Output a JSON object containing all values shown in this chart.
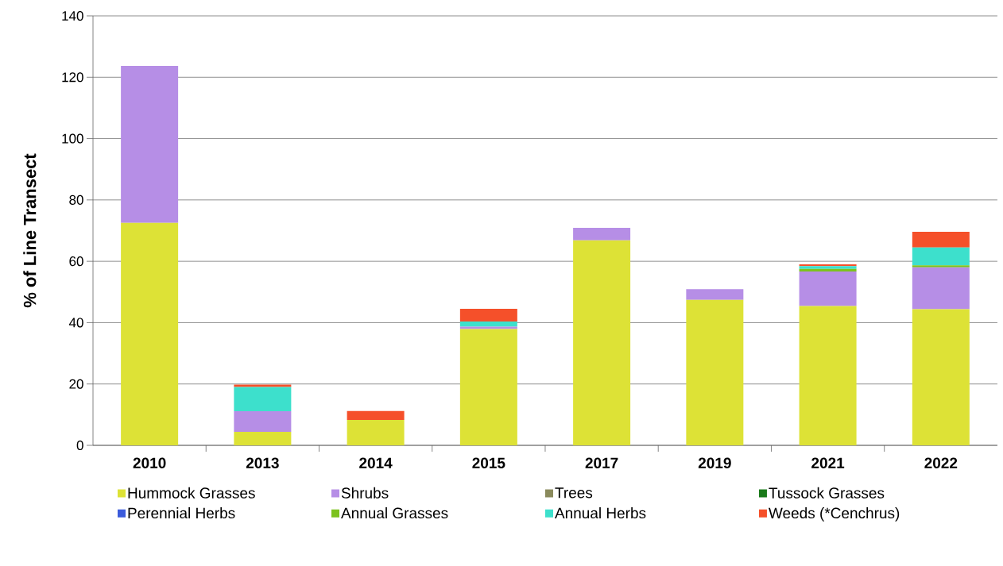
{
  "chart_data": {
    "type": "bar",
    "stacked": true,
    "ylabel": "% of Line Transect",
    "categories": [
      "2010",
      "2013",
      "2014",
      "2015",
      "2017",
      "2019",
      "2021",
      "2022"
    ],
    "series": [
      {
        "name": "Hummock Grasses",
        "color": "#dde236",
        "values": [
          72.5,
          4.4,
          8.3,
          37.9,
          66.8,
          47.4,
          45.4,
          44.4
        ]
      },
      {
        "name": "Shrubs",
        "color": "#b68ee6",
        "values": [
          51.2,
          6.7,
          0,
          0.8,
          4.1,
          3.5,
          11.3,
          13.6
        ]
      },
      {
        "name": "Trees",
        "color": "#8a8a5c",
        "values": [
          0,
          0,
          0,
          0,
          0,
          0,
          0,
          0
        ]
      },
      {
        "name": "Tussock Grasses",
        "color": "#1a7a1a",
        "values": [
          0,
          0,
          0,
          0,
          0,
          0,
          0,
          0
        ]
      },
      {
        "name": "Perennial Herbs",
        "color": "#3b5bdb",
        "values": [
          0,
          0,
          0,
          0,
          0,
          0,
          0,
          0
        ]
      },
      {
        "name": "Annual Grasses",
        "color": "#7cc21e",
        "values": [
          0,
          0,
          0,
          0,
          0,
          0,
          0.8,
          0.7
        ]
      },
      {
        "name": "Annual Herbs",
        "color": "#3de0cc",
        "values": [
          0,
          7.9,
          0,
          1.7,
          0,
          0,
          0.9,
          5.8
        ]
      },
      {
        "name": "Weeds (*Cenchrus)",
        "color": "#f5502a",
        "values": [
          0,
          0.8,
          2.9,
          4.1,
          0,
          0,
          0.6,
          5.1
        ]
      }
    ],
    "ylim": [
      0,
      140
    ],
    "yticks": [
      0,
      20,
      40,
      60,
      80,
      100,
      120,
      140
    ],
    "grid": "y",
    "legend": "bottom"
  }
}
